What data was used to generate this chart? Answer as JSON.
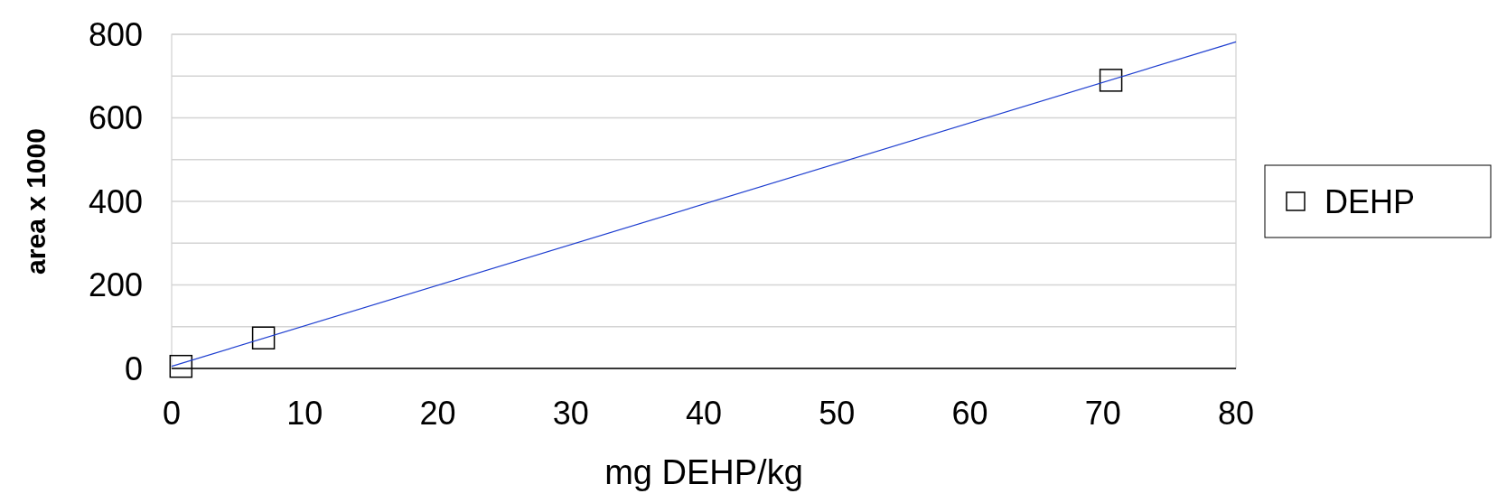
{
  "chart_data": {
    "type": "scatter",
    "xlabel": "mg DEHP/kg",
    "ylabel": "area x 1000",
    "series": [
      {
        "name": "DEHP",
        "color": "#000000",
        "x": [
          0.7,
          6.9,
          70.6
        ],
        "values": [
          5,
          73,
          690
        ],
        "marker": "square"
      },
      {
        "type": "line",
        "color": "#1f3fd0",
        "x": [
          0,
          80
        ],
        "values": [
          5,
          782
        ],
        "marker": "none"
      }
    ],
    "xlim": [
      0,
      80
    ],
    "xticks": [
      0,
      10,
      20,
      30,
      40,
      50,
      60,
      70,
      80
    ],
    "ylim": [
      0,
      800
    ],
    "yticks": [
      0,
      {
        "value": 100,
        "label": null
      },
      200,
      {
        "value": 300,
        "label": null
      },
      400,
      {
        "value": 500,
        "label": null
      },
      600,
      {
        "value": 700,
        "label": null
      },
      800
    ],
    "grid": "y",
    "legend": "right"
  }
}
